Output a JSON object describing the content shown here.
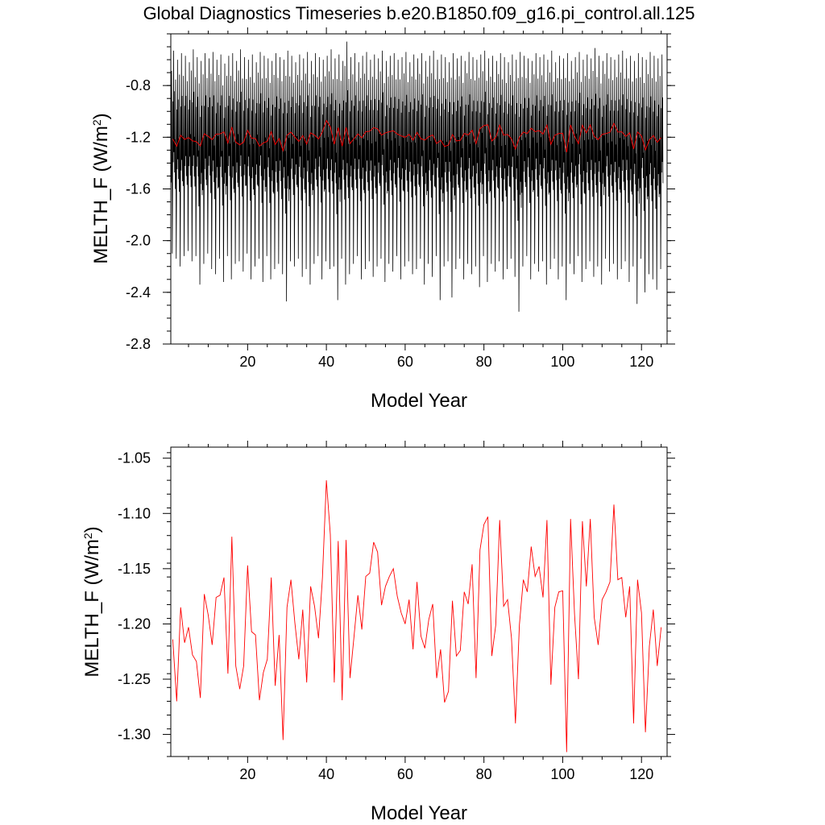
{
  "figure": {
    "title": "Global Diagnostics Timeseries b.e20.B1850.f09_g16.pi_control.all.125"
  },
  "chart_data": [
    {
      "type": "line",
      "xlabel": "Model Year",
      "ylabel_main": "MELTH_F (W/m",
      "ylabel_sup": "2",
      "ylabel_close": ")",
      "xlim": [
        0.5,
        126.5
      ],
      "ylim": [
        -2.8,
        -0.4
      ],
      "xticks": [
        20,
        40,
        60,
        80,
        100,
        120
      ],
      "yticks": [
        -0.8,
        -1.2,
        -1.6,
        -2.0,
        -2.4,
        -2.8
      ],
      "ytick_labels": [
        "-0.8",
        "-1.2",
        "-1.6",
        "-2.0",
        "-2.4",
        "-2.8"
      ],
      "grid": false,
      "series": [
        {
          "kind": "monthly",
          "color": "#000000",
          "annual_maxima": [
            -0.53,
            -0.6,
            -0.55,
            -0.57,
            -0.62,
            -0.52,
            -0.58,
            -0.61,
            -0.55,
            -0.59,
            -0.54,
            -0.6,
            -0.56,
            -0.63,
            -0.57,
            -0.55,
            -0.61,
            -0.52,
            -0.58,
            -0.6,
            -0.56,
            -0.62,
            -0.54,
            -0.57,
            -0.59,
            -0.61,
            -0.55,
            -0.58,
            -0.6,
            -0.53,
            -0.57,
            -0.62,
            -0.56,
            -0.59,
            -0.54,
            -0.61,
            -0.55,
            -0.58,
            -0.6,
            -0.57,
            -0.52,
            -0.59,
            -0.56,
            -0.61,
            -0.46,
            -0.58,
            -0.55,
            -0.62,
            -0.57,
            -0.54,
            -0.6,
            -0.56,
            -0.59,
            -0.53,
            -0.61,
            -0.57,
            -0.55,
            -0.6,
            -0.58,
            -0.54,
            -0.62,
            -0.56,
            -0.59,
            -0.55,
            -0.61,
            -0.57,
            -0.53,
            -0.6,
            -0.56,
            -0.58,
            -0.62,
            -0.55,
            -0.59,
            -0.57,
            -0.61,
            -0.54,
            -0.58,
            -0.6,
            -0.56,
            -0.53,
            -0.59,
            -0.57,
            -0.61,
            -0.55,
            -0.58,
            -0.62,
            -0.56,
            -0.6,
            -0.54,
            -0.57,
            -0.59,
            -0.61,
            -0.55,
            -0.58,
            -0.56,
            -0.6,
            -0.53,
            -0.62,
            -0.57,
            -0.59,
            -0.55,
            -0.61,
            -0.58,
            -0.54,
            -0.6,
            -0.56,
            -0.59,
            -0.51,
            -0.57,
            -0.61,
            -0.55,
            -0.58,
            -0.6,
            -0.56,
            -0.53,
            -0.59,
            -0.57,
            -0.61,
            -0.55,
            -0.58,
            -0.6,
            -0.54,
            -0.57,
            -0.59,
            -0.56
          ],
          "annual_minima": [
            -2.1,
            -2.14,
            -2.2,
            -2.12,
            -2.08,
            -2.16,
            -2.12,
            -2.34,
            -2.18,
            -2.1,
            -2.22,
            -2.26,
            -2.14,
            -2.32,
            -2.12,
            -2.3,
            -2.18,
            -2.16,
            -2.24,
            -2.1,
            -2.3,
            -2.2,
            -2.14,
            -2.32,
            -2.12,
            -2.3,
            -2.22,
            -2.18,
            -2.26,
            -2.47,
            -2.16,
            -2.2,
            -2.14,
            -2.28,
            -2.22,
            -2.34,
            -2.18,
            -2.12,
            -2.3,
            -2.16,
            -2.22,
            -2.2,
            -2.46,
            -2.14,
            -2.34,
            -2.26,
            -2.18,
            -2.12,
            -2.3,
            -2.22,
            -2.16,
            -2.28,
            -2.2,
            -2.14,
            -2.32,
            -2.18,
            -2.24,
            -2.12,
            -2.3,
            -2.2,
            -2.16,
            -2.26,
            -2.22,
            -2.14,
            -2.34,
            -2.18,
            -2.28,
            -2.12,
            -2.46,
            -2.2,
            -2.16,
            -2.44,
            -2.22,
            -2.14,
            -2.3,
            -2.18,
            -2.26,
            -2.2,
            -2.36,
            -2.12,
            -2.32,
            -2.18,
            -2.24,
            -2.16,
            -2.3,
            -2.22,
            -2.14,
            -2.28,
            -2.55,
            -2.2,
            -2.12,
            -2.3,
            -2.18,
            -2.24,
            -2.16,
            -2.34,
            -2.22,
            -2.14,
            -2.3,
            -2.2,
            -2.46,
            -2.18,
            -2.26,
            -2.12,
            -2.32,
            -2.22,
            -2.16,
            -2.28,
            -2.2,
            -2.34,
            -2.14,
            -2.24,
            -2.18,
            -2.3,
            -2.22,
            -2.16,
            -2.32,
            -2.2,
            -2.49,
            -2.14,
            -2.4,
            -2.26,
            -2.3,
            -2.38,
            -2.22,
            -2.18
          ]
        },
        {
          "kind": "annual",
          "color": "#ff0000",
          "values_ref": "annual_mean"
        }
      ]
    },
    {
      "type": "line",
      "xlabel": "Model Year",
      "ylabel_main": "MELTH_F (W/m",
      "ylabel_sup": "2",
      "ylabel_close": ")",
      "xlim": [
        0.5,
        126.5
      ],
      "ylim": [
        -1.32,
        -1.04
      ],
      "xticks": [
        20,
        40,
        60,
        80,
        100,
        120
      ],
      "yticks": [
        -1.05,
        -1.1,
        -1.15,
        -1.2,
        -1.25,
        -1.3
      ],
      "ytick_labels": [
        "-1.05",
        "-1.10",
        "-1.15",
        "-1.20",
        "-1.25",
        "-1.30"
      ],
      "grid": false,
      "series": [
        {
          "kind": "annual",
          "color": "#ff0000",
          "values_ref": "annual_mean"
        }
      ]
    }
  ],
  "annual_mean": {
    "x_start": 1,
    "values": [
      -1.214,
      -1.27,
      -1.185,
      -1.217,
      -1.203,
      -1.228,
      -1.234,
      -1.267,
      -1.173,
      -1.192,
      -1.219,
      -1.176,
      -1.174,
      -1.158,
      -1.245,
      -1.121,
      -1.238,
      -1.259,
      -1.238,
      -1.147,
      -1.207,
      -1.21,
      -1.269,
      -1.244,
      -1.232,
      -1.158,
      -1.256,
      -1.21,
      -1.305,
      -1.185,
      -1.16,
      -1.199,
      -1.232,
      -1.187,
      -1.253,
      -1.166,
      -1.184,
      -1.213,
      -1.158,
      -1.07,
      -1.119,
      -1.253,
      -1.125,
      -1.269,
      -1.124,
      -1.249,
      -1.212,
      -1.174,
      -1.205,
      -1.157,
      -1.154,
      -1.126,
      -1.135,
      -1.183,
      -1.166,
      -1.157,
      -1.15,
      -1.175,
      -1.19,
      -1.2,
      -1.178,
      -1.223,
      -1.162,
      -1.211,
      -1.222,
      -1.196,
      -1.182,
      -1.249,
      -1.223,
      -1.271,
      -1.261,
      -1.179,
      -1.229,
      -1.224,
      -1.171,
      -1.182,
      -1.146,
      -1.249,
      -1.133,
      -1.11,
      -1.103,
      -1.229,
      -1.201,
      -1.106,
      -1.184,
      -1.178,
      -1.213,
      -1.29,
      -1.201,
      -1.16,
      -1.171,
      -1.13,
      -1.157,
      -1.148,
      -1.176,
      -1.106,
      -1.255,
      -1.185,
      -1.171,
      -1.17,
      -1.316,
      -1.105,
      -1.191,
      -1.25,
      -1.107,
      -1.166,
      -1.105,
      -1.194,
      -1.219,
      -1.178,
      -1.171,
      -1.162,
      -1.092,
      -1.16,
      -1.158,
      -1.194,
      -1.166,
      -1.29,
      -1.16,
      -1.19,
      -1.298,
      -1.22,
      -1.187,
      -1.238,
      -1.203
    ]
  }
}
